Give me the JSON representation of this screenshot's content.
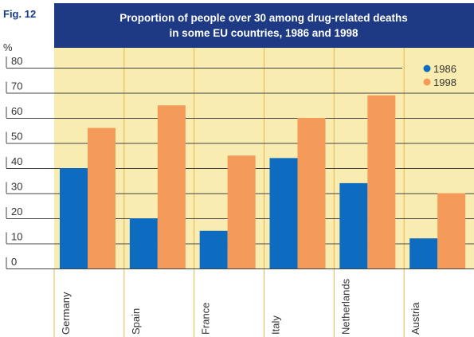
{
  "figure_label": "Fig. 12",
  "colors": {
    "title_band": "#1e3a85",
    "plot_background": "#f9ecb0",
    "series_1986": "#0d6cc0",
    "series_1998": "#f49a5a",
    "grid": "#444444",
    "category_divider": "#e4b84a"
  },
  "chart_data": {
    "type": "bar",
    "title": "Proportion of people over 30 among drug-related deaths",
    "subtitle": "in some EU countries, 1986 and 1998",
    "ylabel": "%",
    "xlabel": "",
    "ylim": [
      0,
      80
    ],
    "yticks": [
      "0",
      "10",
      "20",
      "30",
      "40",
      "50",
      "60",
      "70",
      "80"
    ],
    "categories": [
      "Germany",
      "Spain",
      "France",
      "Italy",
      "Netherlands",
      "Austria"
    ],
    "series": [
      {
        "name": "1986",
        "values": [
          40,
          20,
          15,
          44,
          34,
          12
        ]
      },
      {
        "name": "1998",
        "values": [
          56,
          65,
          45,
          60,
          69,
          30
        ]
      }
    ],
    "grid": true,
    "legend_position": "top-right"
  }
}
